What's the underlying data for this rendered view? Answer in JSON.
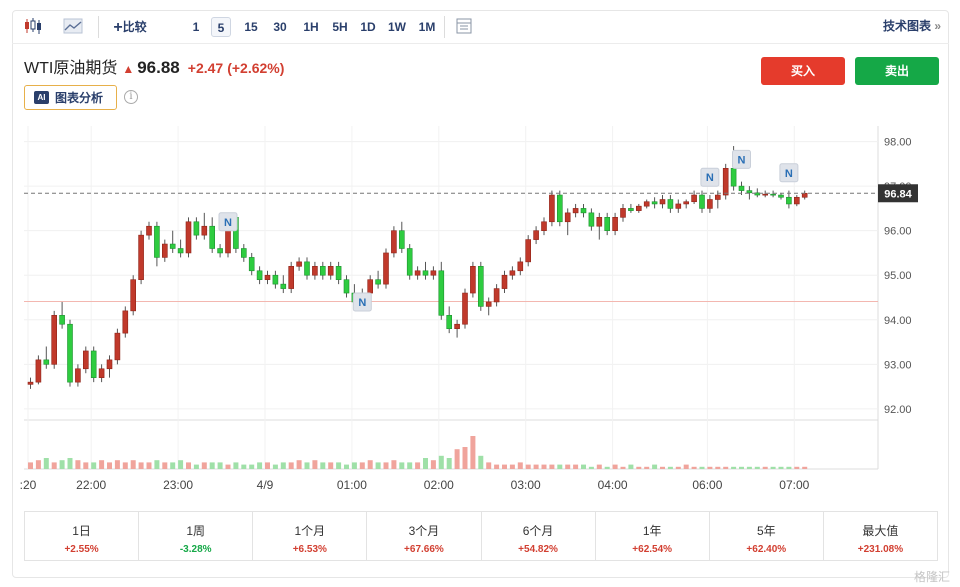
{
  "toolbar": {
    "compare_label": "比较",
    "intervals": [
      "1",
      "5",
      "15",
      "30",
      "1H",
      "5H",
      "1D",
      "1W",
      "1M"
    ],
    "active_interval": "5",
    "tech_chart_label": "技术图表"
  },
  "header": {
    "instrument": "WTI原油期货",
    "price": "96.88",
    "change": "+2.47",
    "change_pct": "(+2.62%)",
    "buy_label": "买入",
    "sell_label": "卖出",
    "ai_badge": "AI",
    "ai_label": "图表分析"
  },
  "colors": {
    "up": "#d23f31",
    "down": "#15a847",
    "candle_up": "#c0392b",
    "candle_down": "#2ecc40",
    "accent": "#2a3f6b"
  },
  "chart_data": {
    "type": "candlestick",
    "ylim": [
      91.75,
      98.35
    ],
    "y_ticks": [
      "92.00",
      "93.00",
      "94.00",
      "95.00",
      "96.00",
      "97.00",
      "98.00"
    ],
    "y_tick_values": [
      92,
      93,
      94,
      95,
      96,
      97,
      98
    ],
    "x_tick_labels": [
      ":20",
      "22:00",
      "23:00",
      "4/9",
      "01:00",
      "02:00",
      "03:00",
      "04:00",
      "06:00",
      "07:00"
    ],
    "x_tick_bars": [
      0,
      8,
      19,
      30,
      41,
      52,
      63,
      74,
      86,
      97
    ],
    "last_price_label": "96.84",
    "last_price": 96.84,
    "prev_close": 94.41,
    "news_marker_label": "N",
    "news_markers": [
      {
        "bar": 25,
        "price": 96.2
      },
      {
        "bar": 42,
        "price": 94.4
      },
      {
        "bar": 86,
        "price": 97.2
      },
      {
        "bar": 90,
        "price": 97.6
      },
      {
        "bar": 96,
        "price": 97.3
      }
    ],
    "candles": [
      [
        92.55,
        92.7,
        92.45,
        92.6
      ],
      [
        92.6,
        93.2,
        92.55,
        93.1
      ],
      [
        93.1,
        93.4,
        92.9,
        93.0
      ],
      [
        93.0,
        94.2,
        92.9,
        94.1
      ],
      [
        94.1,
        94.4,
        93.8,
        93.9
      ],
      [
        93.9,
        94.0,
        92.5,
        92.6
      ],
      [
        92.6,
        93.0,
        92.5,
        92.9
      ],
      [
        92.9,
        93.4,
        92.8,
        93.3
      ],
      [
        93.3,
        93.4,
        92.6,
        92.7
      ],
      [
        92.7,
        93.0,
        92.6,
        92.9
      ],
      [
        92.9,
        93.2,
        92.7,
        93.1
      ],
      [
        93.1,
        93.8,
        93.0,
        93.7
      ],
      [
        93.7,
        94.3,
        93.6,
        94.2
      ],
      [
        94.2,
        95.0,
        94.1,
        94.9
      ],
      [
        94.9,
        96.0,
        94.8,
        95.9
      ],
      [
        95.9,
        96.2,
        95.8,
        96.1
      ],
      [
        96.1,
        96.2,
        95.2,
        95.4
      ],
      [
        95.4,
        95.8,
        95.3,
        95.7
      ],
      [
        95.7,
        96.0,
        95.5,
        95.6
      ],
      [
        95.6,
        95.8,
        95.4,
        95.5
      ],
      [
        95.5,
        96.3,
        95.4,
        96.2
      ],
      [
        96.2,
        96.3,
        95.8,
        95.9
      ],
      [
        95.9,
        96.4,
        95.8,
        96.1
      ],
      [
        96.1,
        96.3,
        95.5,
        95.6
      ],
      [
        95.6,
        95.7,
        95.4,
        95.5
      ],
      [
        95.5,
        96.4,
        95.4,
        96.3
      ],
      [
        96.3,
        96.4,
        95.5,
        95.6
      ],
      [
        95.6,
        95.7,
        95.3,
        95.4
      ],
      [
        95.4,
        95.5,
        95.0,
        95.1
      ],
      [
        95.1,
        95.2,
        94.8,
        94.9
      ],
      [
        94.9,
        95.1,
        94.8,
        95.0
      ],
      [
        95.0,
        95.1,
        94.7,
        94.8
      ],
      [
        94.8,
        95.0,
        94.6,
        94.7
      ],
      [
        94.7,
        95.3,
        94.6,
        95.2
      ],
      [
        95.2,
        95.4,
        95.1,
        95.3
      ],
      [
        95.3,
        95.4,
        94.9,
        95.0
      ],
      [
        95.0,
        95.3,
        94.9,
        95.2
      ],
      [
        95.2,
        95.3,
        94.9,
        95.0
      ],
      [
        95.0,
        95.3,
        94.9,
        95.2
      ],
      [
        95.2,
        95.3,
        94.8,
        94.9
      ],
      [
        94.9,
        95.0,
        94.5,
        94.6
      ],
      [
        94.6,
        94.8,
        94.2,
        94.4
      ],
      [
        94.4,
        94.7,
        94.3,
        94.6
      ],
      [
        94.6,
        95.0,
        94.5,
        94.9
      ],
      [
        94.9,
        95.1,
        94.7,
        94.8
      ],
      [
        94.8,
        95.6,
        94.7,
        95.5
      ],
      [
        95.5,
        96.1,
        95.4,
        96.0
      ],
      [
        96.0,
        96.2,
        95.5,
        95.6
      ],
      [
        95.6,
        95.7,
        94.9,
        95.0
      ],
      [
        95.0,
        95.2,
        94.9,
        95.1
      ],
      [
        95.1,
        95.3,
        94.9,
        95.0
      ],
      [
        95.0,
        95.2,
        94.9,
        95.1
      ],
      [
        95.1,
        95.3,
        94.0,
        94.1
      ],
      [
        94.1,
        94.3,
        93.7,
        93.8
      ],
      [
        93.8,
        94.0,
        93.6,
        93.9
      ],
      [
        93.9,
        94.7,
        93.8,
        94.6
      ],
      [
        94.6,
        95.3,
        94.5,
        95.2
      ],
      [
        95.2,
        95.3,
        94.2,
        94.3
      ],
      [
        94.3,
        94.5,
        94.1,
        94.4
      ],
      [
        94.4,
        94.8,
        94.3,
        94.7
      ],
      [
        94.7,
        95.1,
        94.6,
        95.0
      ],
      [
        95.0,
        95.2,
        94.9,
        95.1
      ],
      [
        95.1,
        95.4,
        95.0,
        95.3
      ],
      [
        95.3,
        95.9,
        95.2,
        95.8
      ],
      [
        95.8,
        96.1,
        95.7,
        96.0
      ],
      [
        96.0,
        96.3,
        95.9,
        96.2
      ],
      [
        96.2,
        96.9,
        96.1,
        96.8
      ],
      [
        96.8,
        96.9,
        96.1,
        96.2
      ],
      [
        96.2,
        96.5,
        95.9,
        96.4
      ],
      [
        96.4,
        96.6,
        96.3,
        96.5
      ],
      [
        96.5,
        96.6,
        96.3,
        96.4
      ],
      [
        96.4,
        96.5,
        96.0,
        96.1
      ],
      [
        96.1,
        96.4,
        95.8,
        96.3
      ],
      [
        96.3,
        96.4,
        95.9,
        96.0
      ],
      [
        96.0,
        96.4,
        95.9,
        96.3
      ],
      [
        96.3,
        96.6,
        96.2,
        96.5
      ],
      [
        96.5,
        96.6,
        96.4,
        96.45
      ],
      [
        96.45,
        96.6,
        96.4,
        96.55
      ],
      [
        96.55,
        96.7,
        96.5,
        96.65
      ],
      [
        96.65,
        96.75,
        96.5,
        96.6
      ],
      [
        96.6,
        96.8,
        96.5,
        96.7
      ],
      [
        96.7,
        96.8,
        96.4,
        96.5
      ],
      [
        96.5,
        96.7,
        96.4,
        96.6
      ],
      [
        96.6,
        96.7,
        96.5,
        96.65
      ],
      [
        96.65,
        96.9,
        96.6,
        96.8
      ],
      [
        96.8,
        96.9,
        96.4,
        96.5
      ],
      [
        96.5,
        96.8,
        96.4,
        96.7
      ],
      [
        96.7,
        96.9,
        96.5,
        96.8
      ],
      [
        96.8,
        97.5,
        96.7,
        97.4
      ],
      [
        97.4,
        97.9,
        96.9,
        97.0
      ],
      [
        97.0,
        97.1,
        96.8,
        96.9
      ],
      [
        96.9,
        97.0,
        96.7,
        96.85
      ],
      [
        96.85,
        96.95,
        96.75,
        96.8
      ],
      [
        96.8,
        96.9,
        96.75,
        96.82
      ],
      [
        96.82,
        96.9,
        96.75,
        96.8
      ],
      [
        96.8,
        96.85,
        96.7,
        96.75
      ],
      [
        96.75,
        96.9,
        96.5,
        96.6
      ],
      [
        96.6,
        96.8,
        96.55,
        96.75
      ],
      [
        96.75,
        96.9,
        96.7,
        96.84
      ]
    ],
    "volume": [
      3,
      4,
      5,
      3,
      4,
      5,
      4,
      3,
      3,
      4,
      3,
      4,
      3,
      4,
      3,
      3,
      4,
      3,
      3,
      4,
      3,
      2,
      3,
      3,
      3,
      2,
      3,
      2,
      2,
      3,
      3,
      2,
      3,
      3,
      4,
      3,
      4,
      3,
      3,
      3,
      2,
      3,
      3,
      4,
      3,
      3,
      4,
      3,
      3,
      3,
      5,
      4,
      6,
      5,
      9,
      10,
      15,
      6,
      3,
      2,
      2,
      2,
      3,
      2,
      2,
      2,
      2,
      2,
      2,
      2,
      2,
      1,
      2,
      1,
      2,
      1,
      2,
      1,
      1,
      2,
      1,
      1,
      1,
      2,
      1,
      1,
      1,
      1,
      1,
      1,
      1,
      1,
      1,
      1,
      1,
      1,
      1,
      1,
      1
    ]
  },
  "performance": [
    {
      "label": "1日",
      "value": "+2.55%",
      "dir": "up"
    },
    {
      "label": "1周",
      "value": "-3.28%",
      "dir": "down"
    },
    {
      "label": "1个月",
      "value": "+6.53%",
      "dir": "up"
    },
    {
      "label": "3个月",
      "value": "+67.66%",
      "dir": "up"
    },
    {
      "label": "6个月",
      "value": "+54.82%",
      "dir": "up"
    },
    {
      "label": "1年",
      "value": "+62.54%",
      "dir": "up"
    },
    {
      "label": "5年",
      "value": "+62.40%",
      "dir": "up"
    },
    {
      "label": "最大值",
      "value": "+231.08%",
      "dir": "up"
    }
  ],
  "watermark": "格隆汇"
}
